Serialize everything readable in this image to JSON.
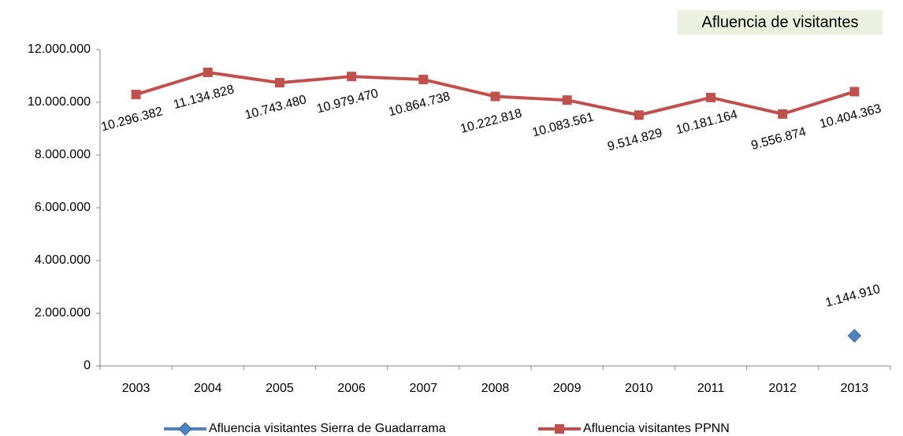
{
  "chart_data": {
    "type": "line",
    "title": "Afluencia de visitantes",
    "categories": [
      "2003",
      "2004",
      "2005",
      "2006",
      "2007",
      "2008",
      "2009",
      "2010",
      "2011",
      "2012",
      "2013"
    ],
    "series": [
      {
        "name": "Afluencia visitantes Sierra de Guadarrama",
        "color": "#4f81bd",
        "marker": "diamond",
        "values": [
          null,
          null,
          null,
          null,
          null,
          null,
          null,
          null,
          null,
          null,
          1144910
        ],
        "value_labels": [
          null,
          null,
          null,
          null,
          null,
          null,
          null,
          null,
          null,
          null,
          "1.144.910"
        ]
      },
      {
        "name": "Afluencia visitantes PPNN",
        "color": "#c0504d",
        "marker": "square",
        "values": [
          10296382,
          11134828,
          10743480,
          10979470,
          10864738,
          10222818,
          10083561,
          9514829,
          10181164,
          9556874,
          10404363
        ],
        "value_labels": [
          "10.296.382",
          "11.134.828",
          "10.743.480",
          "10.979.470",
          "10.864.738",
          "10.222.818",
          "10.083.561",
          "9.514.829",
          "10.181.164",
          "9.556.874",
          "10.404.363"
        ]
      }
    ],
    "ylim": [
      0,
      12000000
    ],
    "yticks": [
      0,
      {
        "value": 2000000,
        "label": "2.000.000"
      },
      {
        "value": 4000000,
        "label": "4.000.000"
      },
      {
        "value": 6000000,
        "label": "6.000.000"
      },
      {
        "value": 8000000,
        "label": "8.000.000"
      },
      {
        "value": 10000000,
        "label": "10.000.000"
      },
      {
        "value": 12000000,
        "label": "12.000.000"
      }
    ],
    "legend": "bottom"
  }
}
